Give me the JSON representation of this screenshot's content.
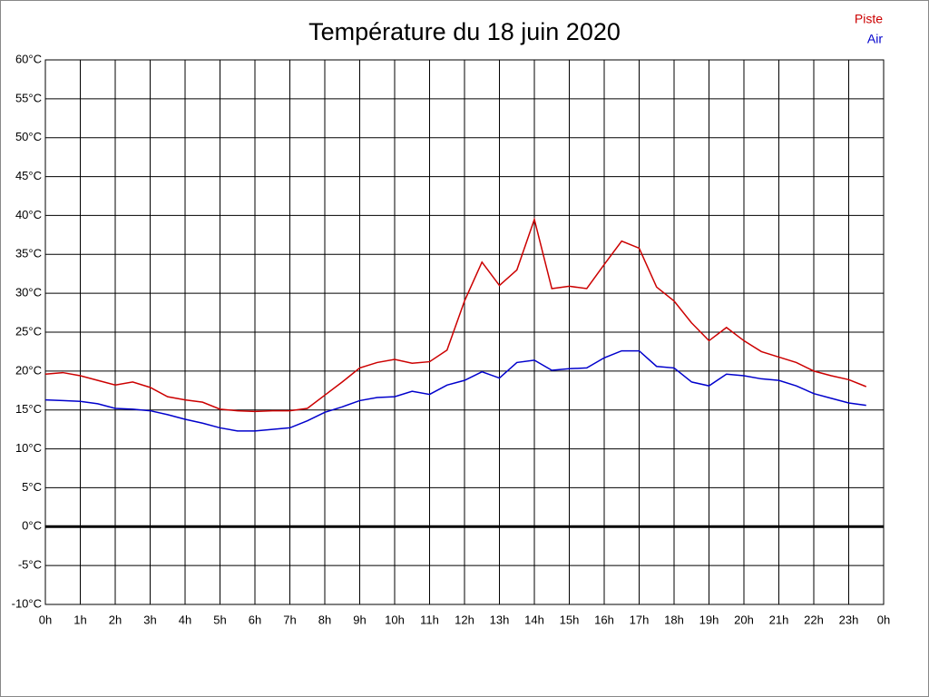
{
  "chart_data": {
    "type": "line",
    "title": "Température du 18 juin 2020",
    "x": [
      0,
      0.5,
      1,
      1.5,
      2,
      2.5,
      3,
      3.5,
      4,
      4.5,
      5,
      5.5,
      6,
      6.5,
      7,
      7.5,
      8,
      8.5,
      9,
      9.5,
      10,
      10.5,
      11,
      11.5,
      12,
      12.5,
      13,
      13.5,
      14,
      14.5,
      15,
      15.5,
      16,
      16.5,
      17,
      17.5,
      18,
      18.5,
      19,
      19.5,
      20,
      20.5,
      21,
      21.5,
      22,
      22.5,
      23,
      23.5
    ],
    "series": [
      {
        "name": "Piste",
        "color": "#cc0000",
        "values": [
          19.6,
          19.8,
          19.4,
          18.8,
          18.2,
          18.6,
          17.9,
          16.7,
          16.3,
          16.0,
          15.1,
          14.9,
          14.8,
          14.9,
          14.9,
          15.2,
          16.9,
          18.6,
          20.4,
          21.1,
          21.5,
          21.0,
          21.2,
          22.7,
          29.0,
          34.0,
          31.0,
          33.0,
          39.5,
          30.6,
          30.9,
          30.6,
          33.7,
          36.7,
          35.8,
          30.8,
          29.0,
          26.2,
          23.9,
          25.6,
          23.9,
          22.5,
          21.8,
          21.1,
          20.0,
          19.4,
          18.9,
          18.0
        ]
      },
      {
        "name": "Air",
        "color": "#0000cc",
        "values": [
          16.3,
          16.2,
          16.1,
          15.8,
          15.2,
          15.1,
          14.9,
          14.4,
          13.8,
          13.3,
          12.7,
          12.3,
          12.3,
          12.5,
          12.7,
          13.6,
          14.7,
          15.4,
          16.2,
          16.6,
          16.7,
          17.4,
          17.0,
          18.2,
          18.8,
          19.9,
          19.1,
          21.1,
          21.4,
          20.1,
          20.3,
          20.4,
          21.7,
          22.6,
          22.6,
          20.6,
          20.4,
          18.6,
          18.1,
          19.6,
          19.4,
          19.0,
          18.8,
          18.1,
          17.1,
          16.5,
          15.9,
          15.6
        ]
      }
    ],
    "xlim": [
      0,
      24
    ],
    "xticks": [
      {
        "value": 0,
        "label": "0h"
      },
      {
        "value": 1,
        "label": "1h"
      },
      {
        "value": 2,
        "label": "2h"
      },
      {
        "value": 3,
        "label": "3h"
      },
      {
        "value": 4,
        "label": "4h"
      },
      {
        "value": 5,
        "label": "5h"
      },
      {
        "value": 6,
        "label": "6h"
      },
      {
        "value": 7,
        "label": "7h"
      },
      {
        "value": 8,
        "label": "8h"
      },
      {
        "value": 9,
        "label": "9h"
      },
      {
        "value": 10,
        "label": "10h"
      },
      {
        "value": 11,
        "label": "11h"
      },
      {
        "value": 12,
        "label": "12h"
      },
      {
        "value": 13,
        "label": "13h"
      },
      {
        "value": 14,
        "label": "14h"
      },
      {
        "value": 15,
        "label": "15h"
      },
      {
        "value": 16,
        "label": "16h"
      },
      {
        "value": 17,
        "label": "17h"
      },
      {
        "value": 18,
        "label": "18h"
      },
      {
        "value": 19,
        "label": "19h"
      },
      {
        "value": 20,
        "label": "20h"
      },
      {
        "value": 21,
        "label": "21h"
      },
      {
        "value": 22,
        "label": "22h"
      },
      {
        "value": 23,
        "label": "23h"
      },
      {
        "value": 24,
        "label": "0h"
      }
    ],
    "ylim": [
      -10,
      60
    ],
    "yticks": [
      {
        "value": 60,
        "label": "60°C"
      },
      {
        "value": 55,
        "label": "55°C"
      },
      {
        "value": 50,
        "label": "50°C"
      },
      {
        "value": 45,
        "label": "45°C"
      },
      {
        "value": 40,
        "label": "40°C"
      },
      {
        "value": 35,
        "label": "35°C"
      },
      {
        "value": 30,
        "label": "30°C"
      },
      {
        "value": 25,
        "label": "25°C"
      },
      {
        "value": 20,
        "label": "20°C"
      },
      {
        "value": 15,
        "label": "15°C"
      },
      {
        "value": 10,
        "label": "10°C"
      },
      {
        "value": 5,
        "label": "5°C"
      },
      {
        "value": 0,
        "label": "0°C"
      },
      {
        "value": -5,
        "label": "-5°C"
      },
      {
        "value": -10,
        "label": "-10°C"
      }
    ],
    "grid": true
  }
}
